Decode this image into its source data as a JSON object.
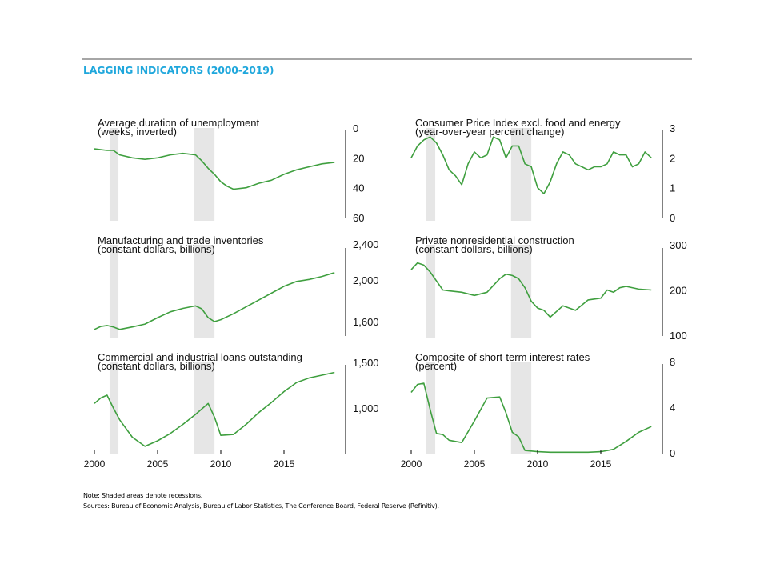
{
  "title": "LAGGING INDICATORS (2000-2019)",
  "note": "Note: Shaded areas denote recessions.",
  "sources": "Sources: Bureau of Economic Analysis, Bureau of Labor Statistics, The Conference Board, Federal Reserve (Refinitiv).",
  "colors": {
    "line": "#3f9f3f",
    "recession": "#e6e6e6",
    "title": "#1fa7dc",
    "rule": "#a6a6a6"
  },
  "chart_data": [
    {
      "type": "line",
      "title": "Average duration of unemployment",
      "subtitle": "(weeks, inverted)",
      "inverted": true,
      "yticks": [
        "0",
        "20",
        "40",
        "60"
      ],
      "ylim": [
        0,
        60
      ],
      "xlim": [
        2000,
        2019.3
      ],
      "recessions": [
        [
          2001.2,
          2001.9
        ],
        [
          2007.9,
          2009.5
        ]
      ],
      "x": [
        2000,
        2001,
        2001.5,
        2002,
        2003,
        2004,
        2005,
        2006,
        2007,
        2008,
        2008.5,
        2009,
        2009.5,
        2010,
        2010.5,
        2011,
        2012,
        2013,
        2014,
        2015,
        2016,
        2017,
        2018,
        2019
      ],
      "values": [
        14,
        15,
        15,
        18,
        20,
        21,
        20,
        18,
        17,
        18,
        22,
        27,
        31,
        36,
        39,
        41,
        40,
        37,
        35,
        31,
        28,
        26,
        24,
        23
      ]
    },
    {
      "type": "line",
      "title": "Consumer Price Index excl. food and energy",
      "subtitle": "(year-over-year percent change)",
      "yticks": [
        "0",
        "1",
        "2",
        "3"
      ],
      "ylim": [
        0,
        3
      ],
      "xlim": [
        2000,
        2019.3
      ],
      "recessions": [
        [
          2001.2,
          2001.9
        ],
        [
          2007.9,
          2009.5
        ]
      ],
      "x": [
        2000,
        2000.5,
        2001,
        2001.5,
        2002,
        2002.5,
        2003,
        2003.5,
        2004,
        2004.5,
        2005,
        2005.5,
        2006,
        2006.5,
        2007,
        2007.5,
        2008,
        2008.5,
        2009,
        2009.5,
        2010,
        2010.5,
        2011,
        2011.5,
        2012,
        2012.5,
        2013,
        2013.5,
        2014,
        2014.5,
        2015,
        2015.5,
        2016,
        2016.5,
        2017,
        2017.5,
        2018,
        2018.5,
        2019
      ],
      "values": [
        2.0,
        2.4,
        2.6,
        2.7,
        2.5,
        2.1,
        1.6,
        1.4,
        1.1,
        1.8,
        2.2,
        2.0,
        2.1,
        2.7,
        2.6,
        2.0,
        2.4,
        2.4,
        1.8,
        1.7,
        1.0,
        0.8,
        1.2,
        1.8,
        2.2,
        2.1,
        1.8,
        1.7,
        1.6,
        1.7,
        1.7,
        1.8,
        2.2,
        2.1,
        2.1,
        1.7,
        1.8,
        2.2,
        2.0
      ]
    },
    {
      "type": "line",
      "title": "Manufacturing and trade inventories",
      "subtitle": "(constant dollars, billions)",
      "yticks": [
        "2,400",
        "2,000",
        "1,600"
      ],
      "ylim": [
        1600,
        2400
      ],
      "xlim": [
        2000,
        2019.3
      ],
      "recessions": [
        [
          2001.2,
          2001.9
        ],
        [
          2007.9,
          2009.5
        ]
      ],
      "x": [
        2000,
        2000.5,
        2001,
        2001.5,
        2002,
        2003,
        2004,
        2005,
        2006,
        2007,
        2008,
        2008.5,
        2009,
        2009.5,
        2010,
        2011,
        2012,
        2013,
        2014,
        2015,
        2016,
        2017,
        2018,
        2019
      ],
      "values": [
        1520,
        1550,
        1560,
        1545,
        1520,
        1545,
        1575,
        1640,
        1700,
        1735,
        1760,
        1730,
        1640,
        1600,
        1620,
        1680,
        1750,
        1820,
        1890,
        1960,
        2010,
        2030,
        2060,
        2100
      ]
    },
    {
      "type": "line",
      "title": "Private nonresidential construction",
      "subtitle": "(constant dollars, billions)",
      "yticks": [
        "300",
        "200",
        "100"
      ],
      "ylim": [
        100,
        300
      ],
      "xlim": [
        2000,
        2019.3
      ],
      "recessions": [
        [
          2001.2,
          2001.9
        ],
        [
          2007.9,
          2009.5
        ]
      ],
      "x": [
        2000,
        2000.5,
        2001,
        2001.5,
        2002,
        2002.5,
        2003,
        2004,
        2005,
        2006,
        2007,
        2007.5,
        2008,
        2008.5,
        2009,
        2009.5,
        2010,
        2010.5,
        2011,
        2012,
        2013,
        2014,
        2015,
        2015.5,
        2016,
        2016.5,
        2017,
        2018,
        2019
      ],
      "values": [
        245,
        260,
        255,
        240,
        220,
        200,
        198,
        195,
        188,
        195,
        225,
        235,
        232,
        225,
        205,
        175,
        160,
        155,
        140,
        165,
        155,
        178,
        182,
        200,
        195,
        205,
        208,
        202,
        200
      ]
    },
    {
      "type": "line",
      "title": "Commercial and industrial loans outstanding",
      "subtitle": "(constant dollars, billions)",
      "yticks": [
        "1,500",
        "1,000"
      ],
      "ylim": [
        500,
        1500
      ],
      "xlim": [
        2000,
        2019.3
      ],
      "recessions": [
        [
          2001.2,
          2001.9
        ],
        [
          2007.9,
          2009.5
        ]
      ],
      "x": [
        2000,
        2000.5,
        2001,
        2001.5,
        2002,
        2003,
        2004,
        2005,
        2006,
        2007,
        2008,
        2009,
        2009.5,
        2010,
        2011,
        2012,
        2013,
        2014,
        2015,
        2016,
        2017,
        2018,
        2019
      ],
      "values": [
        1050,
        1110,
        1140,
        1000,
        870,
        680,
        580,
        640,
        720,
        820,
        930,
        1050,
        900,
        700,
        710,
        820,
        950,
        1060,
        1180,
        1280,
        1330,
        1360,
        1390
      ]
    },
    {
      "type": "line",
      "title": "Composite of short-term interest rates",
      "subtitle": "(percent)",
      "yticks": [
        "8",
        "4",
        "0"
      ],
      "ylim": [
        0,
        8
      ],
      "xlim": [
        2000,
        2019.3
      ],
      "recessions": [
        [
          2001.2,
          2001.9
        ],
        [
          2007.9,
          2009.5
        ]
      ],
      "x": [
        2000,
        2000.5,
        2001,
        2001.5,
        2002,
        2002.5,
        2003,
        2003.5,
        2004,
        2005,
        2006,
        2007,
        2007.5,
        2008,
        2008.5,
        2009,
        2010,
        2011,
        2012,
        2013,
        2014,
        2015,
        2016,
        2017,
        2018,
        2019
      ],
      "values": [
        5.3,
        6.0,
        6.1,
        3.8,
        1.7,
        1.6,
        1.1,
        1.0,
        0.9,
        2.8,
        4.8,
        4.9,
        3.5,
        1.8,
        1.4,
        0.2,
        0.1,
        0.05,
        0.05,
        0.05,
        0.05,
        0.1,
        0.3,
        1.0,
        1.8,
        2.3
      ]
    }
  ],
  "xaxis": {
    "ticks": [
      "2000",
      "2005",
      "2010",
      "2015"
    ]
  }
}
